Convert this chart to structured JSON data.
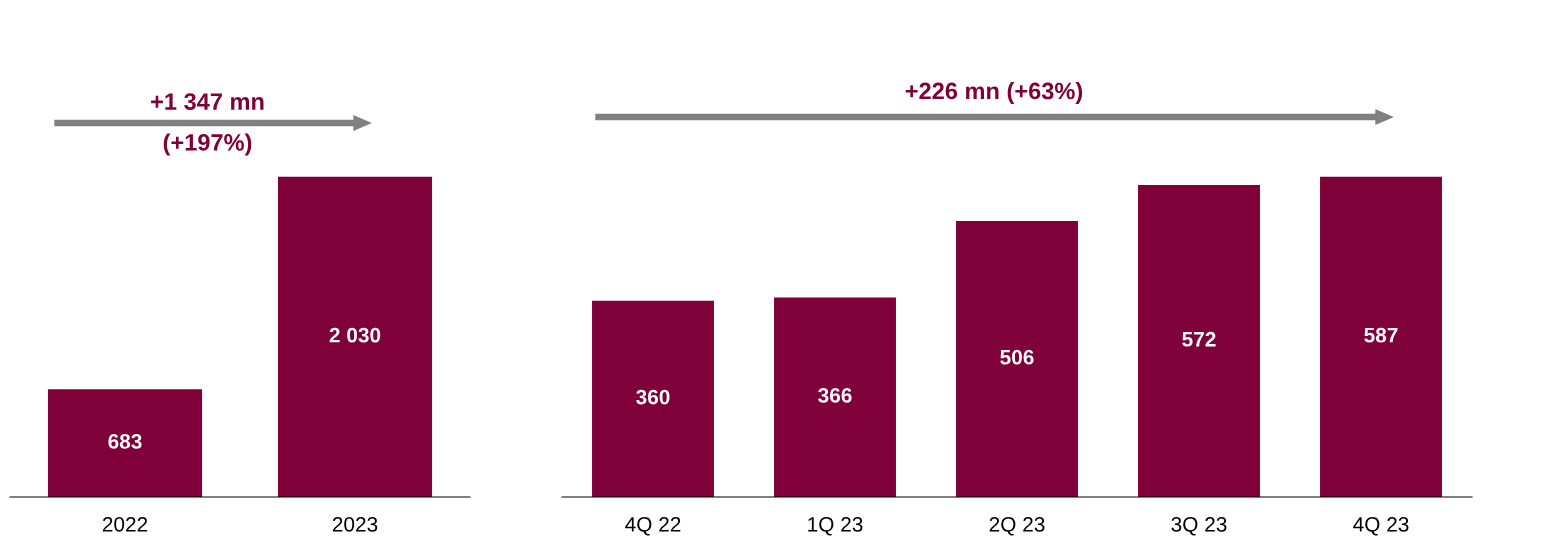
{
  "chart_data": [
    {
      "type": "bar",
      "categories": [
        "2022",
        "2023"
      ],
      "values": [
        683,
        2030
      ],
      "color": "#80003a",
      "data_labels": true,
      "annotations": [
        "+1 347 mn\n(+197%)"
      ]
    },
    {
      "type": "bar",
      "categories": [
        "4Q 22",
        "1Q 23",
        "2Q 23",
        "3Q 23",
        "4Q 23"
      ],
      "values": [
        360,
        366,
        506,
        572,
        587
      ],
      "color": "#80003a",
      "data_labels": true,
      "annotations": [
        "+226 mn (+63%)"
      ]
    }
  ]
}
